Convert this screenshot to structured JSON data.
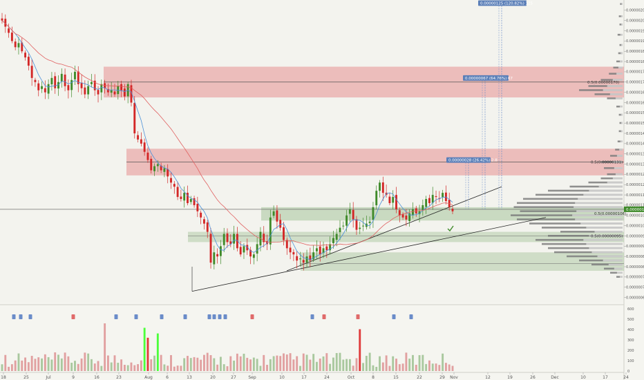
{
  "chart_data": {
    "type": "candlestick",
    "timeframe_note": "daily candles with moving averages, volume profile, fib levels and volume histogram",
    "y_axis": {
      "ticks": [
        "0.00000210",
        "0.00000205",
        "0.00000200",
        "0.00000195",
        "0.00000190",
        "0.00000185",
        "0.00000180",
        "0.00000175",
        "0.00000170",
        "0.00000165",
        "0.00000160",
        "0.00000155",
        "0.00000150",
        "0.00000145",
        "0.00000140",
        "0.00000135",
        "0.00000130",
        "0.00000125",
        "0.00000120",
        "0.00000115",
        "0.00000110",
        "0.00000105",
        "0.00000100",
        "0.00000095",
        "0.00000090",
        "0.00000085",
        "0.00000080",
        "0.00000075",
        "0.00000070",
        "0.00000065"
      ],
      "current_price_label": "0.00000108",
      "ylim": [
        6.2e-07,
        2.12e-06
      ]
    },
    "x_axis": {
      "ticks": [
        "18",
        "25",
        "Jul",
        "9",
        "16",
        "23",
        "Aug",
        "6",
        "13",
        "20",
        "27",
        "Sep",
        "10",
        "17",
        "24",
        "Oct",
        "8",
        "15",
        "22",
        "29",
        "Nov",
        "12",
        "19",
        "26",
        "Dec",
        "10",
        "17",
        "24"
      ]
    },
    "volume_axis": {
      "ticks": [
        "600",
        "500",
        "400",
        "300",
        "200",
        "100",
        "0"
      ]
    },
    "annotations": {
      "fib_upper": "0.5(0.00000170)",
      "fib_middle": "0.5(0.00000131)",
      "fib_lower_1": "0.5(0.00000106)",
      "fib_lower_2": "0.5(0.00000095)",
      "target_1": "0.00000028 (26.42%) 2.8",
      "target_2": "0.00000067 (64.76%) 67",
      "target_3": "0.00000125 (120.82%) 125"
    },
    "colors": {
      "bull": "#3f8a2a",
      "bear": "#d32626",
      "zone_red": "#e8a5a5",
      "zone_green": "#b7cfae",
      "ma_fast": "#4a90d9",
      "ma_slow": "#e06060",
      "volume_spike": "#4cff3a",
      "target_box": "#5b7fb8"
    }
  }
}
